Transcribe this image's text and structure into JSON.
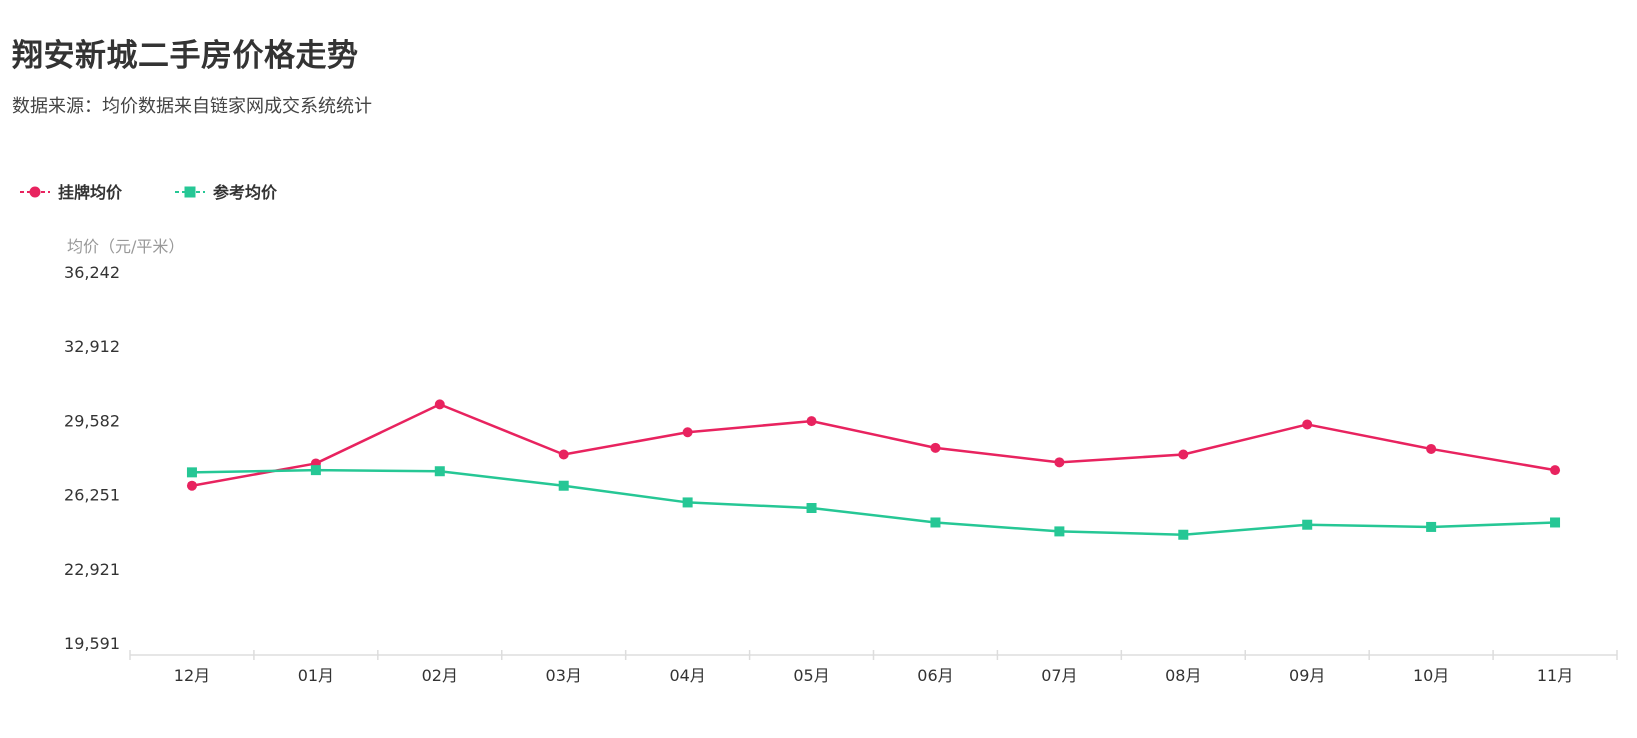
{
  "header": {
    "title": "翔安新城二手房价格走势",
    "subtitle": "数据来源：均价数据来自链家网成交系统统计"
  },
  "colors": {
    "listing": "#e8235f",
    "reference": "#26c795",
    "axis": "#dddddd",
    "tick_text": "#333333",
    "axis_title": "#999999"
  },
  "chart_data": {
    "type": "line",
    "categories": [
      "12月",
      "01月",
      "02月",
      "03月",
      "04月",
      "05月",
      "06月",
      "07月",
      "08月",
      "09月",
      "10月",
      "11月"
    ],
    "series": [
      {
        "name": "挂牌均价",
        "marker": "circle",
        "color": "#e8235f",
        "values": [
          26650,
          27650,
          30300,
          28050,
          29050,
          29550,
          28350,
          27700,
          28050,
          29400,
          28300,
          27350
        ]
      },
      {
        "name": "参考均价",
        "marker": "square",
        "color": "#26c795",
        "values": [
          27250,
          27350,
          27300,
          26650,
          25900,
          25650,
          25000,
          24600,
          24450,
          24900,
          24800,
          25000
        ]
      }
    ],
    "ylabel": "均价（元/平米）",
    "yticks": [
      "36,242",
      "32,912",
      "29,582",
      "26,251",
      "22,921",
      "19,591"
    ],
    "ytick_values": [
      36242,
      32912,
      29582,
      26251,
      22921,
      19591
    ],
    "ylim": [
      19591,
      36242
    ],
    "legend_position": "top-left",
    "grid": false
  }
}
